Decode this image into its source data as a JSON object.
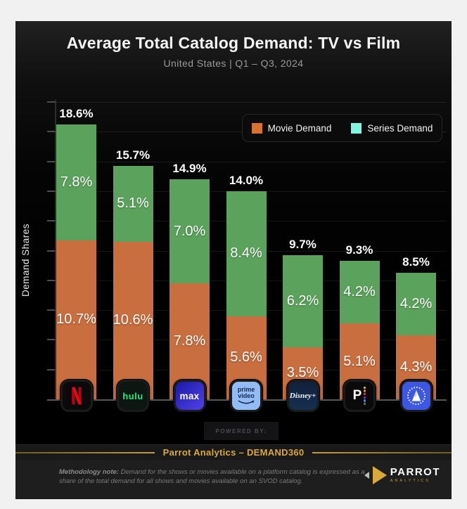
{
  "header": {
    "title": "Average Total Catalog Demand: TV vs Film",
    "subtitle": "United States  |  Q1 – Q3, 2024"
  },
  "legend": [
    {
      "label": "Movie Demand",
      "swatch": "#d8732f"
    },
    {
      "label": "Series Demand",
      "swatch": "#7ef6e2"
    }
  ],
  "chart_data": {
    "type": "bar",
    "stacked": true,
    "categories": [
      "Netflix",
      "Hulu",
      "Max",
      "Prime Video",
      "Disney+",
      "Peacock",
      "Paramount+"
    ],
    "series": [
      {
        "name": "Movie Demand",
        "color": "#c96e3e",
        "values": [
          10.7,
          10.6,
          7.8,
          5.6,
          3.5,
          5.1,
          4.3
        ]
      },
      {
        "name": "Series Demand",
        "color": "#5ba35c",
        "values": [
          7.8,
          5.1,
          7.0,
          8.4,
          6.2,
          4.2,
          4.2
        ]
      }
    ],
    "totals": [
      "18.6%",
      "15.7%",
      "14.9%",
      "14.0%",
      "9.7%",
      "9.3%",
      "8.5%"
    ],
    "title": "Average Total Catalog Demand: TV vs Film",
    "subtitle": "United States | Q1 – Q3, 2024",
    "xlabel": "",
    "ylabel": "Demand Shares",
    "ylim": [
      0,
      20
    ],
    "grid_step": 2,
    "grid": true,
    "legend_position": "top-right"
  },
  "platforms": [
    {
      "name": "Netflix"
    },
    {
      "name": "Hulu",
      "logo_text": "hulu"
    },
    {
      "name": "Max",
      "logo_text": "max"
    },
    {
      "name": "Prime Video",
      "logo_line1": "prime",
      "logo_line2": "video"
    },
    {
      "name": "Disney+",
      "logo_text": "Disney+"
    },
    {
      "name": "Peacock",
      "logo_text": "P"
    },
    {
      "name": "Paramount+"
    }
  ],
  "footer": {
    "powered_by": "POWERED BY:",
    "band_text": "Parrot Analytics – DEMAND360",
    "note_label": "Methodology note:",
    "note_text": " Demand for the shows or movies available on a platform catalog is expressed as a share of the total demand for all shows and movies available on an SVOD catalog.",
    "logo_name": "PARROT",
    "logo_sub": "ANALYTICS"
  }
}
